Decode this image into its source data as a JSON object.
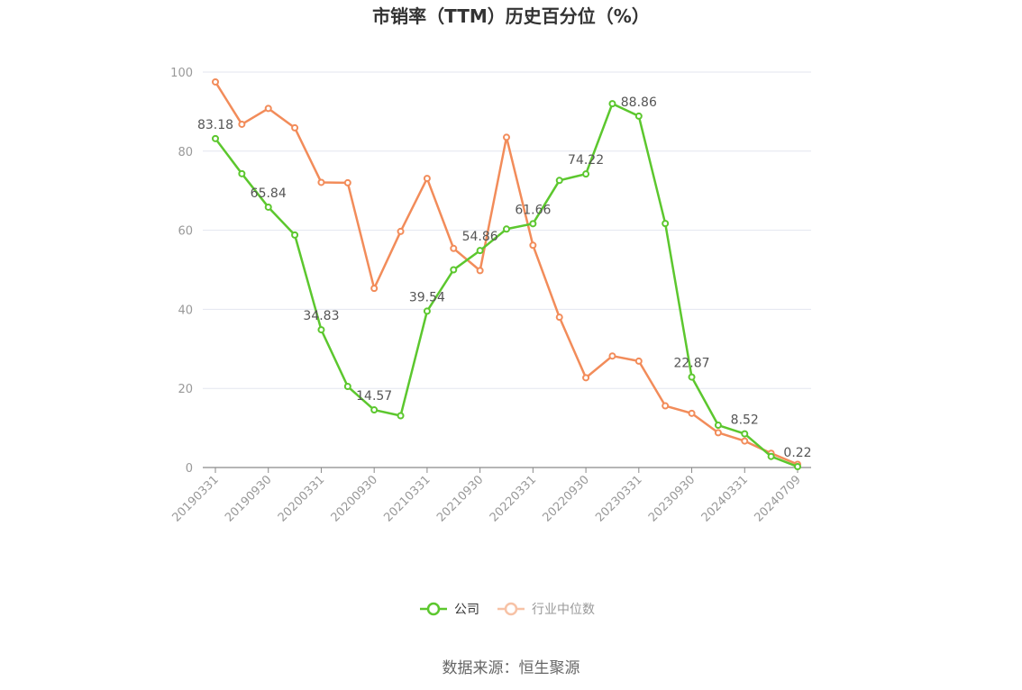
{
  "chart_data": {
    "type": "line",
    "title": "市销率（TTM）历史百分位（%）",
    "ylim": [
      0,
      100
    ],
    "yticks": [
      0,
      20,
      40,
      60,
      80,
      100
    ],
    "x": [
      "20190331",
      "20190630",
      "20190930",
      "20191231",
      "20200331",
      "20200630",
      "20200930",
      "20201231",
      "20210331",
      "20210630",
      "20210930",
      "20211231",
      "20220331",
      "20220630",
      "20220930",
      "20221231",
      "20230331",
      "20230630",
      "20230930",
      "20231231",
      "20240331",
      "20240630",
      "20240709"
    ],
    "xtick_labels": [
      "20190331",
      "20190930",
      "20200331",
      "20200930",
      "20210331",
      "20210930",
      "20220331",
      "20220930",
      "20230331",
      "20230930",
      "20240331",
      "20240709"
    ],
    "series": [
      {
        "name": "公司",
        "color": "#5cc72e",
        "values": [
          83.18,
          74.3,
          65.84,
          58.8,
          34.83,
          20.5,
          14.57,
          13.1,
          39.54,
          50.0,
          54.86,
          60.3,
          61.66,
          72.6,
          74.22,
          92.0,
          88.86,
          61.7,
          22.87,
          10.7,
          8.52,
          2.8,
          0.22
        ],
        "labels": {
          "0": "83.18",
          "2": "65.84",
          "4": "34.83",
          "6": "14.57",
          "8": "39.54",
          "10": "54.86",
          "12": "61.66",
          "14": "74.22",
          "16": "88.86",
          "18": "22.87",
          "20": "8.52",
          "22": "0.22"
        }
      },
      {
        "name": "行业中位数",
        "color": "#f28c5a",
        "values": [
          97.5,
          86.8,
          90.8,
          85.9,
          72.1,
          72.0,
          45.3,
          59.7,
          73.1,
          55.4,
          49.8,
          83.5,
          56.2,
          38.0,
          22.7,
          28.2,
          26.9,
          15.6,
          13.7,
          8.8,
          6.7,
          3.6,
          0.8
        ]
      }
    ],
    "legend": {
      "position": "bottom-center"
    },
    "grid": true
  },
  "footer": {
    "source": "数据来源：恒生聚源"
  }
}
